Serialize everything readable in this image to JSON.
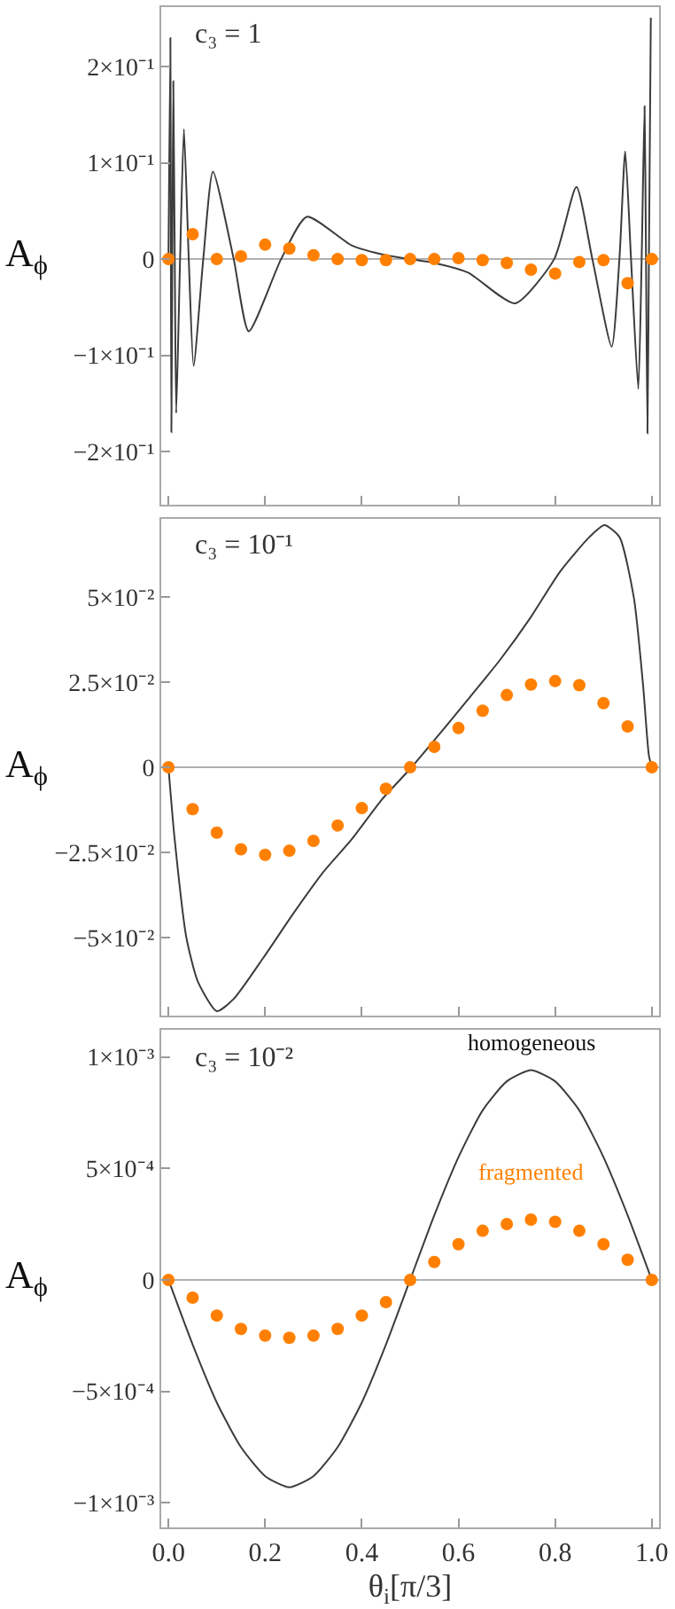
{
  "chart_data": [
    {
      "type": "line",
      "title": "c₃ = 1",
      "ylabel": "A$_{ϕ}$",
      "tick_labels": "y",
      "grid": false,
      "legend": false,
      "xlim": [
        -0.015,
        1.015
      ],
      "xticks": [
        {
          "value": 0,
          "label": null
        },
        {
          "value": 0.2,
          "label": null
        },
        {
          "value": 0.4,
          "label": null
        },
        {
          "value": 0.6,
          "label": null
        },
        {
          "value": 0.8,
          "label": null
        },
        {
          "value": 1,
          "label": null
        }
      ],
      "ylim": [
        -0.255,
        0.262
      ],
      "yticks": [
        {
          "value": -0.2,
          "label": "−2×10⁻¹"
        },
        {
          "value": -0.1,
          "label": "−1×10⁻¹"
        },
        0,
        {
          "value": 0.1,
          "label": "1×10⁻¹"
        },
        {
          "value": 0.2,
          "label": "2×10⁻¹"
        }
      ],
      "ref_lines": [
        {
          "axis": "y",
          "value": 0,
          "color": "#b0b0b0"
        }
      ],
      "series": [
        {
          "color": "#3c3c3c",
          "marker": "none",
          "x": [
            0,
            0.004,
            0.005,
            0.006,
            0.008,
            0.01,
            0.013,
            0.016,
            0.024,
            0.032,
            0.042,
            0.052,
            0.072,
            0.092,
            0.135,
            0.166,
            0.233,
            0.286,
            0.38,
            0.45,
            0.5,
            0.55,
            0.62,
            0.717,
            0.798,
            0.844,
            0.877,
            0.917,
            0.933,
            0.945,
            0.957,
            0.972,
            0.979,
            0.985,
            0.988,
            0.991,
            0.994,
            0.998
          ],
          "values": [
            0,
            0.23,
            0,
            -0.18,
            0,
            0.185,
            0,
            -0.16,
            0,
            0.135,
            0,
            -0.111,
            0,
            0.091,
            0,
            -0.075,
            0,
            0.044,
            0.014,
            0.004,
            0,
            -0.004,
            -0.014,
            -0.046,
            0,
            0.075,
            0,
            -0.091,
            0,
            0.112,
            0,
            -0.135,
            0,
            0.159,
            0,
            -0.181,
            0,
            0.251
          ]
        },
        {
          "type": "scatter",
          "color": "#ff8000",
          "marker": "circle",
          "x": [
            0,
            0.05,
            0.1,
            0.15,
            0.2,
            0.25,
            0.3,
            0.35,
            0.4,
            0.45,
            0.5,
            0.55,
            0.6,
            0.65,
            0.7,
            0.75,
            0.8,
            0.85,
            0.9,
            0.95,
            1.0
          ],
          "values": [
            0,
            0.026,
            0,
            0.003,
            0.015,
            0.011,
            0.004,
            0,
            -0.001,
            -0.001,
            0,
            0,
            0.001,
            -0.001,
            -0.004,
            -0.011,
            -0.015,
            -0.003,
            -0.001,
            -0.025,
            0
          ]
        }
      ]
    },
    {
      "type": "line",
      "title": "c₃ = 10⁻¹",
      "ylabel": "A$_{ϕ}$",
      "tick_labels": "y",
      "grid": false,
      "legend": false,
      "xlim": [
        -0.015,
        1.015
      ],
      "xticks": [
        {
          "value": 0,
          "label": null
        },
        {
          "value": 0.2,
          "label": null
        },
        {
          "value": 0.4,
          "label": null
        },
        {
          "value": 0.6,
          "label": null
        },
        {
          "value": 0.8,
          "label": null
        },
        {
          "value": 1,
          "label": null
        }
      ],
      "ylim": [
        -0.073,
        0.073
      ],
      "yticks": [
        {
          "value": -0.05,
          "label": "−5×10⁻²"
        },
        {
          "value": -0.025,
          "label": "−2.5×10⁻²"
        },
        0,
        {
          "value": 0.025,
          "label": "2.5×10⁻²"
        },
        {
          "value": 0.05,
          "label": "5×10⁻²"
        }
      ],
      "ref_lines": [
        {
          "axis": "y",
          "value": 0,
          "color": "#b0b0b0"
        }
      ],
      "series": [
        {
          "color": "#3c3c3c",
          "marker": "none",
          "x": [
            0,
            0.012,
            0.037,
            0.061,
            0.1,
            0.135,
            0.196,
            0.258,
            0.319,
            0.38,
            0.442,
            0.503,
            0.564,
            0.626,
            0.687,
            0.748,
            0.81,
            0.871,
            0.902,
            0.933,
            0.963,
            0.982,
            0.994,
            1.0
          ],
          "values": [
            0,
            -0.02,
            -0.05,
            -0.063,
            -0.0716,
            -0.068,
            -0.056,
            -0.043,
            -0.031,
            -0.021,
            -0.0094,
            0,
            0.0103,
            0.021,
            0.0317,
            0.0437,
            0.0574,
            0.0676,
            0.0711,
            0.0676,
            0.0497,
            0.024,
            0.0034,
            0
          ]
        },
        {
          "type": "scatter",
          "color": "#ff8000",
          "marker": "circle",
          "x": [
            0,
            0.05,
            0.1,
            0.15,
            0.2,
            0.25,
            0.3,
            0.35,
            0.4,
            0.45,
            0.5,
            0.55,
            0.6,
            0.65,
            0.7,
            0.75,
            0.8,
            0.85,
            0.9,
            0.95,
            1.0
          ],
          "values": [
            0,
            -0.0123,
            -0.0192,
            -0.0241,
            -0.0257,
            -0.0245,
            -0.0216,
            -0.0171,
            -0.012,
            -0.0063,
            0,
            0.006,
            0.0115,
            0.0166,
            0.0212,
            0.0243,
            0.0253,
            0.0241,
            0.0188,
            0.012,
            0
          ]
        }
      ]
    },
    {
      "type": "line",
      "title": "c₃ = 10⁻²",
      "ylabel": "A$_{ϕ}$",
      "xlabel": "θ$_{i}$[π/3]",
      "grid": false,
      "legend": false,
      "xlim": [
        -0.015,
        1.015
      ],
      "xticks": [
        {
          "value": 0,
          "label": "0.0"
        },
        {
          "value": 0.2,
          "label": "0.2"
        },
        {
          "value": 0.4,
          "label": "0.4"
        },
        {
          "value": 0.6,
          "label": "0.6"
        },
        {
          "value": 0.8,
          "label": "0.8"
        },
        {
          "value": 1,
          "label": "1.0"
        }
      ],
      "ylim": [
        -0.00111,
        0.00112
      ],
      "yticks": [
        {
          "value": -0.001,
          "label": "−1×10⁻³"
        },
        {
          "value": -0.0005,
          "label": "−5×10⁻⁴"
        },
        0,
        {
          "value": 0.0005,
          "label": "5×10⁻⁴"
        },
        {
          "value": 0.001,
          "label": "1×10⁻³"
        }
      ],
      "ref_lines": [
        {
          "axis": "y",
          "value": 0,
          "color": "#b0b0b0"
        }
      ],
      "series": [
        {
          "name": "homogeneous",
          "color": "#3c3c3c",
          "marker": "none",
          "x": [
            0,
            0.05,
            0.1,
            0.15,
            0.2,
            0.25,
            0.3,
            0.35,
            0.4,
            0.45,
            0.5,
            0.55,
            0.6,
            0.65,
            0.7,
            0.75,
            0.8,
            0.85,
            0.9,
            0.95,
            1.0
          ],
          "values": [
            0,
            -0.00029,
            -0.00055,
            -0.00075,
            -0.00088,
            -0.00093,
            -0.00088,
            -0.00075,
            -0.00055,
            -0.00029,
            0,
            0.00029,
            0.00055,
            0.00076,
            0.00089,
            0.00094,
            0.00089,
            0.00076,
            0.00055,
            0.00029,
            0
          ]
        },
        {
          "type": "scatter",
          "name": "fragmented",
          "color": "#ff8000",
          "marker": "circle",
          "x": [
            0,
            0.05,
            0.1,
            0.15,
            0.2,
            0.25,
            0.3,
            0.35,
            0.4,
            0.45,
            0.5,
            0.55,
            0.6,
            0.65,
            0.7,
            0.75,
            0.8,
            0.85,
            0.9,
            0.95,
            1.0
          ],
          "values": [
            0,
            -8e-05,
            -0.00016,
            -0.00022,
            -0.00025,
            -0.00026,
            -0.00025,
            -0.00022,
            -0.00016,
            -0.0001,
            0,
            8e-05,
            0.00016,
            0.00022,
            0.00025,
            0.00027,
            0.00026,
            0.00022,
            0.00016,
            9e-05,
            0
          ]
        }
      ]
    }
  ]
}
